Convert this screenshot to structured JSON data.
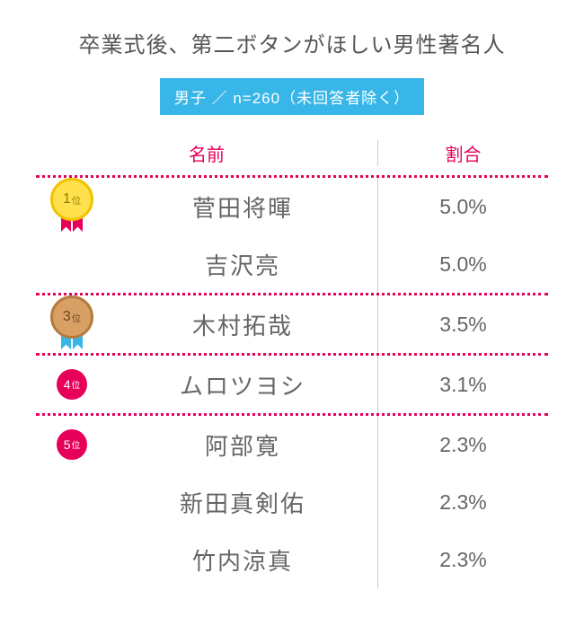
{
  "title": "卒業式後、第二ボタンがほしい男性著名人",
  "subtitle": "男子 ／ n=260（未回答者除く）",
  "headers": {
    "name": "名前",
    "ratio": "割合"
  },
  "colors": {
    "accent": "#e6005a",
    "subtitle_bg": "#38b6e8",
    "text_title": "#555555",
    "text_body": "#666666",
    "divider": "#cccccc"
  },
  "groups": [
    {
      "badge": {
        "type": "medal",
        "style": "gold",
        "rank": "1",
        "suffix": "位"
      },
      "rows": [
        {
          "name": "菅田将暉",
          "ratio": "5.0%"
        },
        {
          "name": "吉沢亮",
          "ratio": "5.0%"
        }
      ]
    },
    {
      "badge": {
        "type": "medal",
        "style": "bronze",
        "rank": "3",
        "suffix": "位"
      },
      "rows": [
        {
          "name": "木村拓哉",
          "ratio": "3.5%"
        }
      ]
    },
    {
      "badge": {
        "type": "small",
        "rank": "4",
        "suffix": "位"
      },
      "rows": [
        {
          "name": "ムロツヨシ",
          "ratio": "3.1%"
        }
      ]
    },
    {
      "badge": {
        "type": "small",
        "rank": "5",
        "suffix": "位"
      },
      "rows": [
        {
          "name": "阿部寛",
          "ratio": "2.3%"
        },
        {
          "name": "新田真剣佑",
          "ratio": "2.3%"
        },
        {
          "name": "竹内涼真",
          "ratio": "2.3%"
        }
      ]
    }
  ]
}
